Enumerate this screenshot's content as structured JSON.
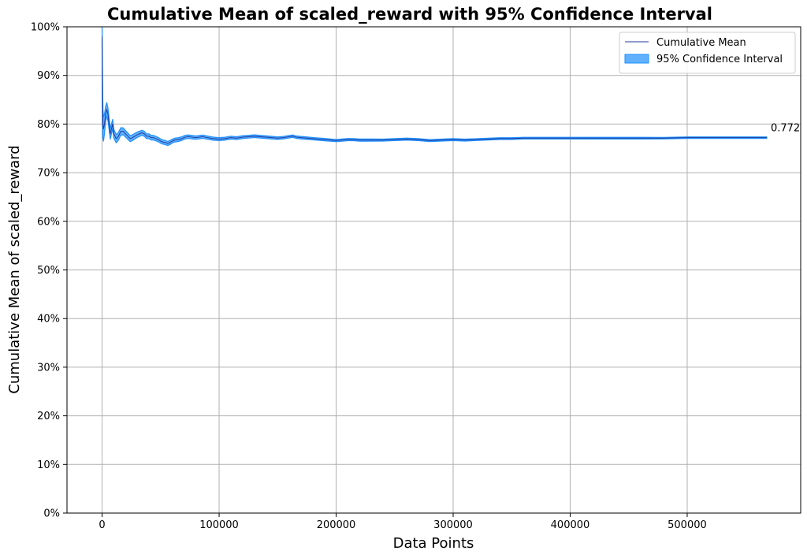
{
  "chart_data": {
    "type": "line",
    "title": "Cumulative Mean of scaled_reward with 95% Confidence Interval",
    "xlabel": "Data Points",
    "ylabel": "Cumulative Mean of scaled_reward",
    "xlim": [
      -30000,
      597000
    ],
    "ylim": [
      0,
      1
    ],
    "x_ticks": [
      0,
      100000,
      200000,
      300000,
      400000,
      500000
    ],
    "x_tick_labels": [
      "0",
      "100000",
      "200000",
      "300000",
      "400000",
      "500000"
    ],
    "y_ticks": [
      0,
      0.1,
      0.2,
      0.3,
      0.4,
      0.5,
      0.6,
      0.7,
      0.8,
      0.9,
      1.0
    ],
    "y_tick_labels": [
      "0%",
      "10%",
      "20%",
      "30%",
      "40%",
      "50%",
      "60%",
      "70%",
      "80%",
      "90%",
      "100%"
    ],
    "grid": true,
    "legend_position": "top-right",
    "legend": [
      "Cumulative Mean",
      "95% Confidence Interval"
    ],
    "colors": {
      "mean": "#1f3a9e",
      "ci": "#1e90ff",
      "grid": "#b0b0b0"
    },
    "series": [
      {
        "name": "Cumulative Mean",
        "x": [
          0,
          300,
          700,
          1200,
          2000,
          3000,
          4000,
          5000,
          6000,
          7000,
          8000,
          9000,
          10000,
          11000,
          12000,
          13000,
          14000,
          15000,
          16000,
          18000,
          20000,
          22000,
          24000,
          26000,
          28000,
          30000,
          32000,
          34000,
          36000,
          38000,
          40000,
          42000,
          44000,
          46000,
          48000,
          50000,
          52000,
          54000,
          56000,
          58000,
          60000,
          62000,
          65000,
          68000,
          71000,
          74000,
          77000,
          80000,
          83000,
          86000,
          90000,
          95000,
          100000,
          105000,
          110000,
          115000,
          120000,
          125000,
          130000,
          135000,
          140000,
          145000,
          150000,
          155000,
          160000,
          163000,
          166000,
          170000,
          175000,
          180000,
          185000,
          190000,
          195000,
          200000,
          205000,
          210000,
          215000,
          220000,
          230000,
          240000,
          250000,
          260000,
          270000,
          280000,
          290000,
          300000,
          310000,
          320000,
          330000,
          340000,
          350000,
          360000,
          370000,
          380000,
          390000,
          400000,
          420000,
          440000,
          460000,
          480000,
          500000,
          520000,
          540000,
          560000,
          568000
        ],
        "values": [
          0.98,
          0.86,
          0.8,
          0.79,
          0.8,
          0.82,
          0.83,
          0.82,
          0.8,
          0.78,
          0.79,
          0.8,
          0.78,
          0.775,
          0.77,
          0.772,
          0.775,
          0.78,
          0.785,
          0.785,
          0.78,
          0.775,
          0.77,
          0.772,
          0.775,
          0.778,
          0.78,
          0.782,
          0.78,
          0.775,
          0.775,
          0.772,
          0.772,
          0.77,
          0.768,
          0.765,
          0.763,
          0.762,
          0.76,
          0.762,
          0.765,
          0.767,
          0.768,
          0.77,
          0.773,
          0.774,
          0.773,
          0.772,
          0.773,
          0.774,
          0.772,
          0.77,
          0.769,
          0.77,
          0.772,
          0.771,
          0.773,
          0.774,
          0.775,
          0.774,
          0.773,
          0.772,
          0.771,
          0.772,
          0.774,
          0.775,
          0.773,
          0.772,
          0.771,
          0.77,
          0.769,
          0.768,
          0.767,
          0.766,
          0.767,
          0.768,
          0.768,
          0.767,
          0.767,
          0.767,
          0.768,
          0.769,
          0.768,
          0.766,
          0.767,
          0.768,
          0.767,
          0.768,
          0.769,
          0.77,
          0.77,
          0.771,
          0.771,
          0.771,
          0.771,
          0.771,
          0.771,
          0.771,
          0.771,
          0.771,
          0.772,
          0.772,
          0.772,
          0.772,
          0.772
        ]
      },
      {
        "name": "95% Confidence Interval",
        "half_width": [
          0.02,
          0.05,
          0.03,
          0.025,
          0.02,
          0.016,
          0.014,
          0.013,
          0.012,
          0.011,
          0.01,
          0.0095,
          0.009,
          0.0088,
          0.0085,
          0.0082,
          0.008,
          0.0078,
          0.0076,
          0.0072,
          0.0068,
          0.0065,
          0.0062,
          0.006,
          0.0058,
          0.0056,
          0.0054,
          0.0052,
          0.0051,
          0.005,
          0.0049,
          0.0048,
          0.0047,
          0.0046,
          0.0045,
          0.0044,
          0.0043,
          0.0042,
          0.0042,
          0.0041,
          0.004,
          0.004,
          0.0039,
          0.0038,
          0.0037,
          0.0036,
          0.0036,
          0.0035,
          0.0034,
          0.0034,
          0.0033,
          0.0032,
          0.0031,
          0.003,
          0.003,
          0.0029,
          0.0029,
          0.0028,
          0.0028,
          0.0027,
          0.0027,
          0.0027,
          0.0026,
          0.0026,
          0.0026,
          0.0025,
          0.0025,
          0.0025,
          0.0025,
          0.0024,
          0.0024,
          0.0024,
          0.0023,
          0.0023,
          0.0023,
          0.0023,
          0.0022,
          0.0022,
          0.0022,
          0.0021,
          0.0021,
          0.0021,
          0.002,
          0.002,
          0.002,
          0.002,
          0.002,
          0.0019,
          0.0019,
          0.0019,
          0.0019,
          0.0018,
          0.0018,
          0.0018,
          0.0018,
          0.0018,
          0.0017,
          0.0017,
          0.0017,
          0.0016,
          0.0016,
          0.0016,
          0.0016,
          0.0016,
          0.0016
        ]
      }
    ],
    "annotations": [
      {
        "text": "0.772",
        "x": 568000,
        "y": 0.772
      }
    ]
  }
}
